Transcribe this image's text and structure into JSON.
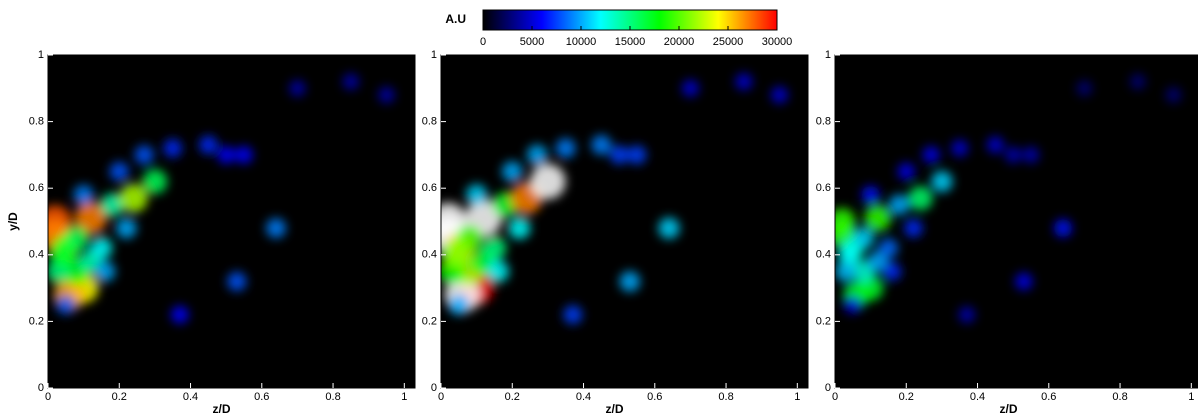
{
  "colorbar": {
    "label": "A.U",
    "lim": [
      0,
      30000
    ],
    "ticks": [
      0,
      5000,
      10000,
      15000,
      20000,
      25000,
      30000
    ],
    "colors": [
      "#000000",
      "#0000ff",
      "#00ffff",
      "#00ff00",
      "#ffff00",
      "#ff0000"
    ],
    "over_color": "#ffffff"
  },
  "chart_data": [
    {
      "type": "heatmap",
      "x_label": "z/D",
      "y_label": "y/D",
      "xlim": [
        0,
        1.03
      ],
      "ylim": [
        0,
        1
      ],
      "xticks": [
        0,
        0.2,
        0.4,
        0.6,
        0.8,
        1
      ],
      "yticks": [
        0,
        0.2,
        0.4,
        0.6,
        0.8,
        1
      ],
      "points": {
        "x": [
          0.02,
          0.02,
          0.05,
          0.1,
          0.06,
          0.08,
          0.12,
          0.15,
          0.03,
          0.12,
          0.18,
          0.24,
          0.3,
          0.27,
          0.35,
          0.45,
          0.5,
          0.55,
          0.2,
          0.1,
          0.05,
          0.64,
          0.53,
          0.37,
          0.7,
          0.85,
          0.95,
          0.22,
          0.16,
          0.08,
          0.04
        ],
        "y": [
          0.5,
          0.46,
          0.42,
          0.3,
          0.28,
          0.35,
          0.38,
          0.42,
          0.35,
          0.51,
          0.55,
          0.57,
          0.62,
          0.7,
          0.72,
          0.73,
          0.7,
          0.7,
          0.65,
          0.58,
          0.25,
          0.48,
          0.32,
          0.22,
          0.9,
          0.92,
          0.88,
          0.48,
          0.35,
          0.45,
          0.4
        ],
        "values": [
          28000,
          27000,
          20000,
          24000,
          26000,
          18000,
          14000,
          12000,
          15000,
          27000,
          14000,
          22000,
          16000,
          8000,
          7000,
          7000,
          6000,
          6000,
          8000,
          9000,
          8000,
          9000,
          8000,
          6000,
          4000,
          4000,
          4000,
          10000,
          10000,
          16000,
          17000
        ]
      }
    },
    {
      "type": "heatmap",
      "x_label": "z/D",
      "xlim": [
        0,
        1.03
      ],
      "ylim": [
        0,
        1
      ],
      "xticks": [
        0,
        0.2,
        0.4,
        0.6,
        0.8,
        1
      ],
      "yticks": [
        0,
        0.2,
        0.4,
        0.6,
        0.8,
        1
      ],
      "points": {
        "x": [
          0.02,
          0.02,
          0.05,
          0.1,
          0.06,
          0.08,
          0.12,
          0.15,
          0.03,
          0.12,
          0.18,
          0.24,
          0.3,
          0.27,
          0.35,
          0.45,
          0.5,
          0.55,
          0.2,
          0.1,
          0.05,
          0.64,
          0.53,
          0.37,
          0.7,
          0.85,
          0.95,
          0.22,
          0.16,
          0.08,
          0.04
        ],
        "y": [
          0.5,
          0.46,
          0.42,
          0.3,
          0.28,
          0.35,
          0.38,
          0.42,
          0.35,
          0.51,
          0.55,
          0.57,
          0.62,
          0.7,
          0.72,
          0.73,
          0.7,
          0.7,
          0.65,
          0.58,
          0.25,
          0.48,
          0.32,
          0.22,
          0.9,
          0.92,
          0.88,
          0.48,
          0.35,
          0.45,
          0.4
        ],
        "values": [
          35000,
          34000,
          25000,
          30000,
          33000,
          22000,
          17000,
          15000,
          18000,
          34000,
          17000,
          27000,
          32000,
          10000,
          9000,
          9000,
          7500,
          7500,
          10000,
          11000,
          10000,
          11000,
          10000,
          7500,
          5000,
          5000,
          5000,
          12000,
          12000,
          20000,
          21000
        ]
      }
    },
    {
      "type": "heatmap",
      "x_label": "z/D",
      "xlim": [
        0,
        1.03
      ],
      "ylim": [
        0,
        1
      ],
      "xticks": [
        0,
        0.2,
        0.4,
        0.6,
        0.8,
        1
      ],
      "yticks": [
        0,
        0.2,
        0.4,
        0.6,
        0.8,
        1
      ],
      "points": {
        "x": [
          0.02,
          0.02,
          0.05,
          0.1,
          0.06,
          0.08,
          0.12,
          0.15,
          0.03,
          0.12,
          0.18,
          0.24,
          0.3,
          0.27,
          0.35,
          0.45,
          0.5,
          0.55,
          0.2,
          0.1,
          0.05,
          0.64,
          0.53,
          0.37,
          0.7,
          0.85,
          0.95,
          0.22,
          0.16,
          0.08,
          0.04
        ],
        "y": [
          0.5,
          0.46,
          0.42,
          0.3,
          0.28,
          0.35,
          0.38,
          0.42,
          0.35,
          0.51,
          0.55,
          0.57,
          0.62,
          0.7,
          0.72,
          0.73,
          0.7,
          0.7,
          0.65,
          0.58,
          0.25,
          0.48,
          0.32,
          0.22,
          0.9,
          0.92,
          0.88,
          0.48,
          0.35,
          0.45,
          0.4
        ],
        "values": [
          19000,
          19000,
          14000,
          17000,
          18000,
          13000,
          10000,
          8500,
          10500,
          19000,
          10000,
          15500,
          11000,
          5500,
          5000,
          5000,
          4200,
          4200,
          5500,
          6300,
          5500,
          6300,
          5500,
          4200,
          2800,
          2800,
          2800,
          7000,
          7000,
          11000,
          12000
        ]
      }
    }
  ]
}
